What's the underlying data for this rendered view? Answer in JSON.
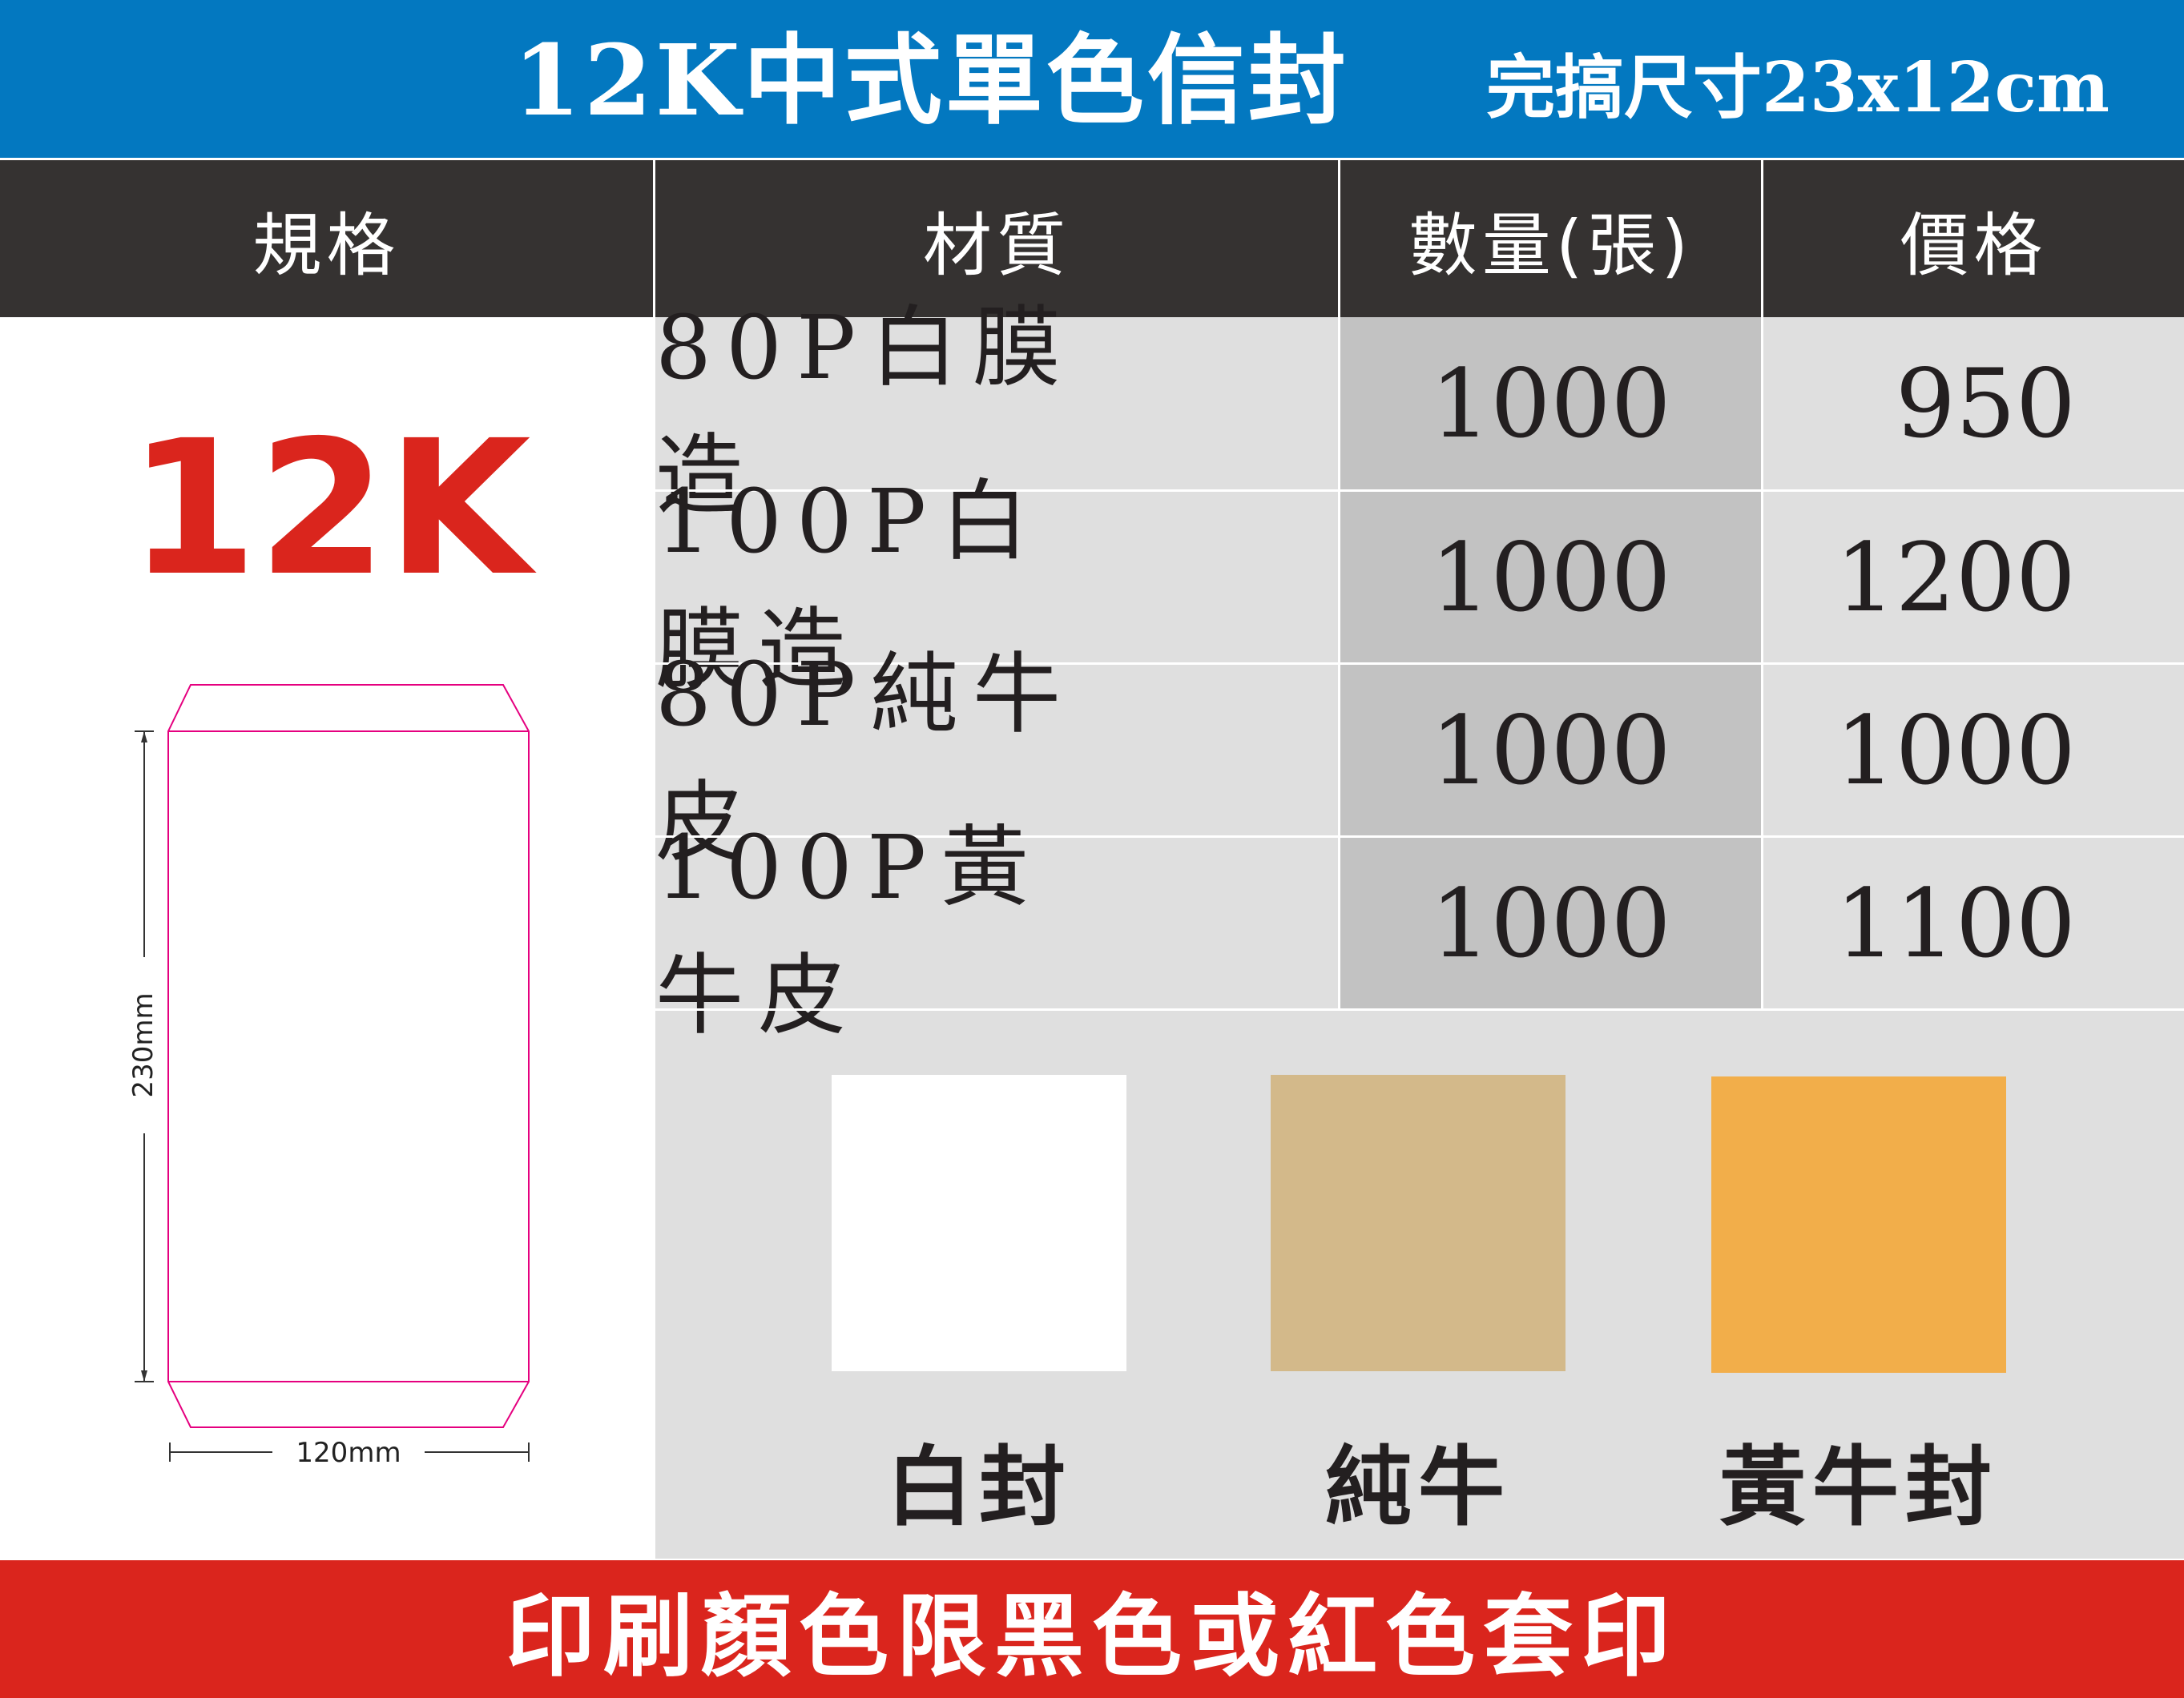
{
  "title": {
    "main": "12K中式單色信封",
    "finished_size": "完搞尺寸23x12cm"
  },
  "table": {
    "headers": {
      "spec": "規格",
      "material": "材質",
      "quantity": "數量(張)",
      "price": "價格"
    },
    "rows": [
      {
        "material": "80P白膜造",
        "quantity": "1000",
        "price": "950"
      },
      {
        "material": "100P白膜造",
        "quantity": "1000",
        "price": "1200"
      },
      {
        "material": "80P純牛皮",
        "quantity": "1000",
        "price": "1000"
      },
      {
        "material": "100P黃牛皮",
        "quantity": "1000",
        "price": "1100"
      }
    ]
  },
  "spec": {
    "label": "12K",
    "height_dim": "230mm",
    "width_dim": "120mm"
  },
  "swatches": [
    {
      "label": "白封",
      "color": "#ffffff"
    },
    {
      "label": "純牛",
      "color": "#d3b98a"
    },
    {
      "label": "黃牛封",
      "color": "#f2ae4a"
    }
  ],
  "footer": {
    "note": "印刷顏色限黑色或紅色套印"
  },
  "colors": {
    "title_bar": "#0378c0",
    "header_bar": "#353231",
    "footer_bar": "#da251d",
    "accent_red": "#da251d",
    "outline_pink": "#e5007f"
  }
}
